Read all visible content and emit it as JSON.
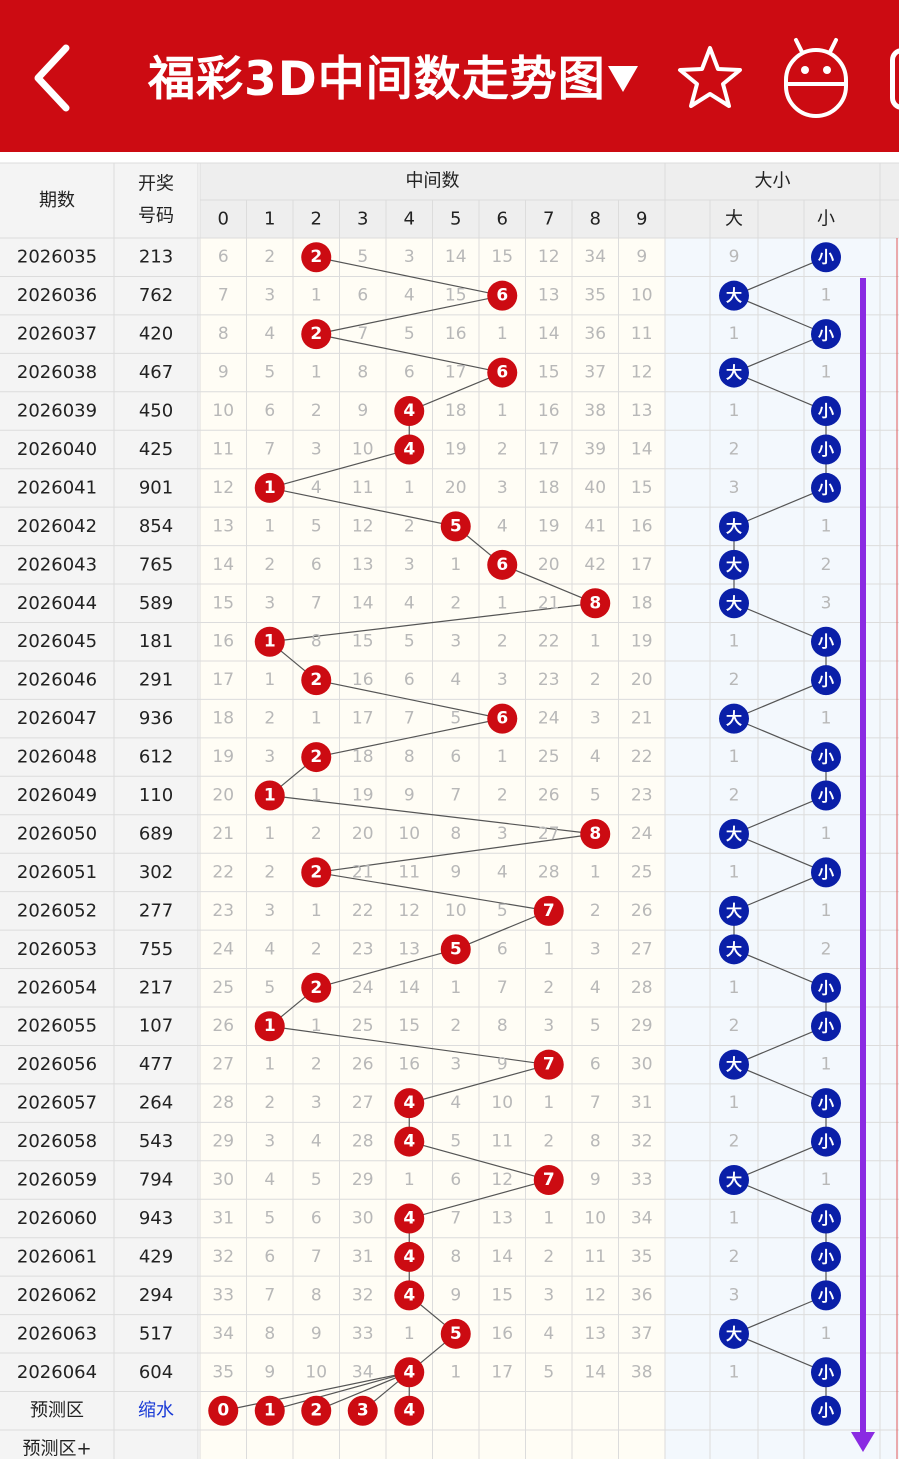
{
  "header": {
    "title": "福彩3D中间数走势图",
    "dropdown_glyph": "▼",
    "back_icon": "chevron-left-icon",
    "favorite_icon": "star-icon",
    "robot_icon": "robot-icon",
    "bg_color": "#cc0b12"
  },
  "table": {
    "col_period": "期数",
    "col_draw_line1": "开奖",
    "col_draw_line2": "号码",
    "group_mid": "中间数",
    "group_size": "大小",
    "digit_headers": [
      "0",
      "1",
      "2",
      "3",
      "4",
      "5",
      "6",
      "7",
      "8",
      "9"
    ],
    "big_label": "大",
    "small_label": "小",
    "rows": [
      {
        "issue": "2026035",
        "draw": "213",
        "mid": 2,
        "miss": [
          6,
          2,
          null,
          5,
          3,
          14,
          15,
          12,
          34,
          9
        ],
        "size": "小",
        "size_miss": [
          9,
          null
        ]
      },
      {
        "issue": "2026036",
        "draw": "762",
        "mid": 6,
        "miss": [
          7,
          3,
          1,
          6,
          4,
          15,
          null,
          13,
          35,
          10
        ],
        "size": "大",
        "size_miss": [
          null,
          1
        ]
      },
      {
        "issue": "2026037",
        "draw": "420",
        "mid": 2,
        "miss": [
          8,
          4,
          null,
          7,
          5,
          16,
          1,
          14,
          36,
          11
        ],
        "size": "小",
        "size_miss": [
          1,
          null
        ]
      },
      {
        "issue": "2026038",
        "draw": "467",
        "mid": 6,
        "miss": [
          9,
          5,
          1,
          8,
          6,
          17,
          null,
          15,
          37,
          12
        ],
        "size": "大",
        "size_miss": [
          null,
          1
        ]
      },
      {
        "issue": "2026039",
        "draw": "450",
        "mid": 4,
        "miss": [
          10,
          6,
          2,
          9,
          null,
          18,
          1,
          16,
          38,
          13
        ],
        "size": "小",
        "size_miss": [
          1,
          null
        ]
      },
      {
        "issue": "2026040",
        "draw": "425",
        "mid": 4,
        "miss": [
          11,
          7,
          3,
          10,
          null,
          19,
          2,
          17,
          39,
          14
        ],
        "size": "小",
        "size_miss": [
          2,
          null
        ]
      },
      {
        "issue": "2026041",
        "draw": "901",
        "mid": 1,
        "miss": [
          12,
          null,
          4,
          11,
          1,
          20,
          3,
          18,
          40,
          15
        ],
        "size": "小",
        "size_miss": [
          3,
          null
        ]
      },
      {
        "issue": "2026042",
        "draw": "854",
        "mid": 5,
        "miss": [
          13,
          1,
          5,
          12,
          2,
          null,
          4,
          19,
          41,
          16
        ],
        "size": "大",
        "size_miss": [
          null,
          1
        ]
      },
      {
        "issue": "2026043",
        "draw": "765",
        "mid": 6,
        "miss": [
          14,
          2,
          6,
          13,
          3,
          1,
          null,
          20,
          42,
          17
        ],
        "size": "大",
        "size_miss": [
          null,
          2
        ]
      },
      {
        "issue": "2026044",
        "draw": "589",
        "mid": 8,
        "miss": [
          15,
          3,
          7,
          14,
          4,
          2,
          1,
          21,
          null,
          18
        ],
        "size": "大",
        "size_miss": [
          null,
          3
        ]
      },
      {
        "issue": "2026045",
        "draw": "181",
        "mid": 1,
        "miss": [
          16,
          null,
          8,
          15,
          5,
          3,
          2,
          22,
          1,
          19
        ],
        "size": "小",
        "size_miss": [
          1,
          null
        ]
      },
      {
        "issue": "2026046",
        "draw": "291",
        "mid": 2,
        "miss": [
          17,
          1,
          null,
          16,
          6,
          4,
          3,
          23,
          2,
          20
        ],
        "size": "小",
        "size_miss": [
          2,
          null
        ]
      },
      {
        "issue": "2026047",
        "draw": "936",
        "mid": 6,
        "miss": [
          18,
          2,
          1,
          17,
          7,
          5,
          null,
          24,
          3,
          21
        ],
        "size": "大",
        "size_miss": [
          null,
          1
        ]
      },
      {
        "issue": "2026048",
        "draw": "612",
        "mid": 2,
        "miss": [
          19,
          3,
          null,
          18,
          8,
          6,
          1,
          25,
          4,
          22
        ],
        "size": "小",
        "size_miss": [
          1,
          null
        ]
      },
      {
        "issue": "2026049",
        "draw": "110",
        "mid": 1,
        "miss": [
          20,
          null,
          1,
          19,
          9,
          7,
          2,
          26,
          5,
          23
        ],
        "size": "小",
        "size_miss": [
          2,
          null
        ]
      },
      {
        "issue": "2026050",
        "draw": "689",
        "mid": 8,
        "miss": [
          21,
          1,
          2,
          20,
          10,
          8,
          3,
          27,
          null,
          24
        ],
        "size": "大",
        "size_miss": [
          null,
          1
        ]
      },
      {
        "issue": "2026051",
        "draw": "302",
        "mid": 2,
        "miss": [
          22,
          2,
          null,
          21,
          11,
          9,
          4,
          28,
          1,
          25
        ],
        "size": "小",
        "size_miss": [
          1,
          null
        ]
      },
      {
        "issue": "2026052",
        "draw": "277",
        "mid": 7,
        "miss": [
          23,
          3,
          1,
          22,
          12,
          10,
          5,
          null,
          2,
          26
        ],
        "size": "大",
        "size_miss": [
          null,
          1
        ]
      },
      {
        "issue": "2026053",
        "draw": "755",
        "mid": 5,
        "miss": [
          24,
          4,
          2,
          23,
          13,
          null,
          6,
          1,
          3,
          27
        ],
        "size": "大",
        "size_miss": [
          null,
          2
        ]
      },
      {
        "issue": "2026054",
        "draw": "217",
        "mid": 2,
        "miss": [
          25,
          5,
          null,
          24,
          14,
          1,
          7,
          2,
          4,
          28
        ],
        "size": "小",
        "size_miss": [
          1,
          null
        ]
      },
      {
        "issue": "2026055",
        "draw": "107",
        "mid": 1,
        "miss": [
          26,
          null,
          1,
          25,
          15,
          2,
          8,
          3,
          5,
          29
        ],
        "size": "小",
        "size_miss": [
          2,
          null
        ]
      },
      {
        "issue": "2026056",
        "draw": "477",
        "mid": 7,
        "miss": [
          27,
          1,
          2,
          26,
          16,
          3,
          9,
          null,
          6,
          30
        ],
        "size": "大",
        "size_miss": [
          null,
          1
        ]
      },
      {
        "issue": "2026057",
        "draw": "264",
        "mid": 4,
        "miss": [
          28,
          2,
          3,
          27,
          null,
          4,
          10,
          1,
          7,
          31
        ],
        "size": "小",
        "size_miss": [
          1,
          null
        ]
      },
      {
        "issue": "2026058",
        "draw": "543",
        "mid": 4,
        "miss": [
          29,
          3,
          4,
          28,
          null,
          5,
          11,
          2,
          8,
          32
        ],
        "size": "小",
        "size_miss": [
          2,
          null
        ]
      },
      {
        "issue": "2026059",
        "draw": "794",
        "mid": 7,
        "miss": [
          30,
          4,
          5,
          29,
          1,
          6,
          12,
          null,
          9,
          33
        ],
        "size": "大",
        "size_miss": [
          null,
          1
        ]
      },
      {
        "issue": "2026060",
        "draw": "943",
        "mid": 4,
        "miss": [
          31,
          5,
          6,
          30,
          null,
          7,
          13,
          1,
          10,
          34
        ],
        "size": "小",
        "size_miss": [
          1,
          null
        ]
      },
      {
        "issue": "2026061",
        "draw": "429",
        "mid": 4,
        "miss": [
          32,
          6,
          7,
          31,
          null,
          8,
          14,
          2,
          11,
          35
        ],
        "size": "小",
        "size_miss": [
          2,
          null
        ]
      },
      {
        "issue": "2026062",
        "draw": "294",
        "mid": 4,
        "miss": [
          33,
          7,
          8,
          32,
          null,
          9,
          15,
          3,
          12,
          36
        ],
        "size": "小",
        "size_miss": [
          3,
          null
        ]
      },
      {
        "issue": "2026063",
        "draw": "517",
        "mid": 5,
        "miss": [
          34,
          8,
          9,
          33,
          1,
          null,
          16,
          4,
          13,
          37
        ],
        "size": "大",
        "size_miss": [
          null,
          1
        ]
      },
      {
        "issue": "2026064",
        "draw": "604",
        "mid": 4,
        "miss": [
          35,
          9,
          10,
          34,
          null,
          1,
          17,
          5,
          14,
          38
        ],
        "size": "小",
        "size_miss": [
          1,
          null
        ]
      }
    ],
    "forecast": {
      "label": "预测区",
      "action": "缩水",
      "picks": [
        "0",
        "1",
        "2",
        "3",
        "4"
      ],
      "size_pick": "小"
    },
    "forecast_plus": {
      "label": "预测区+"
    }
  },
  "colors": {
    "red_ball": "#cc0b12",
    "blue_ball": "#0a1fa8",
    "miss_text": "#b8b8b8",
    "link_blue": "#1a3bd6",
    "scroll_arrow": "#8a2be2"
  }
}
